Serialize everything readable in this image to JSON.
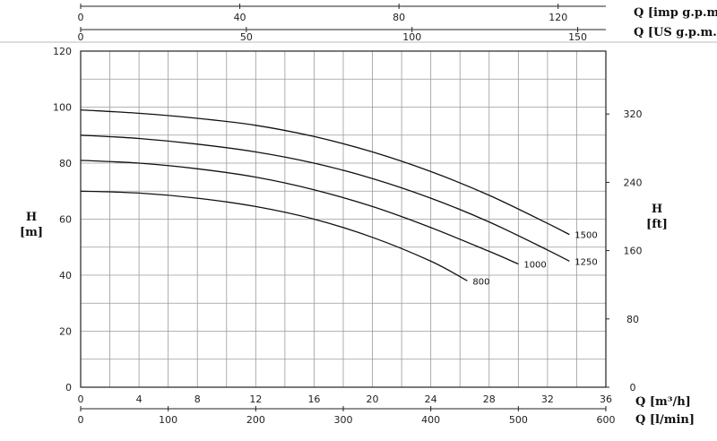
{
  "chart_data": {
    "type": "line",
    "title": "",
    "grid": true,
    "axes": {
      "x_m3h": {
        "label": "Q [m³/h]",
        "range": [
          0,
          36
        ],
        "ticks": [
          0,
          4,
          8,
          12,
          16,
          20,
          24,
          28,
          32,
          36
        ]
      },
      "x_lmin": {
        "label": "Q [l/min]",
        "range": [
          0,
          600
        ],
        "ticks": [
          0,
          100,
          200,
          300,
          400,
          500,
          600
        ]
      },
      "x_imp": {
        "label": "Q [imp g.p.m]",
        "range": [
          0,
          132
        ],
        "ticks": [
          0,
          40,
          80,
          120
        ]
      },
      "x_us": {
        "label": "Q [US g.p.m.]",
        "range": [
          0,
          158.5
        ],
        "ticks": [
          0,
          50,
          100,
          150
        ]
      },
      "y_m": {
        "label_top": "H",
        "label_bottom": "[m]",
        "range": [
          0,
          120
        ],
        "ticks": [
          0,
          20,
          40,
          60,
          80,
          100,
          120
        ]
      },
      "y_ft": {
        "label_top": "H",
        "label_bottom": "[ft]",
        "range": [
          0,
          393.7
        ],
        "ticks": [
          0,
          80,
          160,
          240,
          320
        ]
      }
    },
    "series": [
      {
        "name": "1500",
        "x": [
          0,
          4,
          8,
          12,
          16,
          20,
          24,
          28,
          32,
          33.5
        ],
        "y": [
          99,
          97.8,
          96,
          93.5,
          89.5,
          84,
          77,
          68.5,
          58.5,
          54.5
        ]
      },
      {
        "name": "1250",
        "x": [
          0,
          4,
          8,
          12,
          16,
          20,
          24,
          28,
          32,
          33.5
        ],
        "y": [
          90,
          88.8,
          86.8,
          84,
          80,
          74.5,
          67.5,
          59,
          49,
          45
        ]
      },
      {
        "name": "1000",
        "x": [
          0,
          4,
          8,
          12,
          16,
          20,
          24,
          28,
          30
        ],
        "y": [
          81,
          80,
          78,
          75,
          70.5,
          64.5,
          57,
          48.5,
          44
        ]
      },
      {
        "name": "800",
        "x": [
          0,
          4,
          8,
          12,
          16,
          20,
          24,
          26.5
        ],
        "y": [
          70,
          69.3,
          67.5,
          64.5,
          60,
          53.5,
          45,
          38
        ]
      }
    ]
  }
}
